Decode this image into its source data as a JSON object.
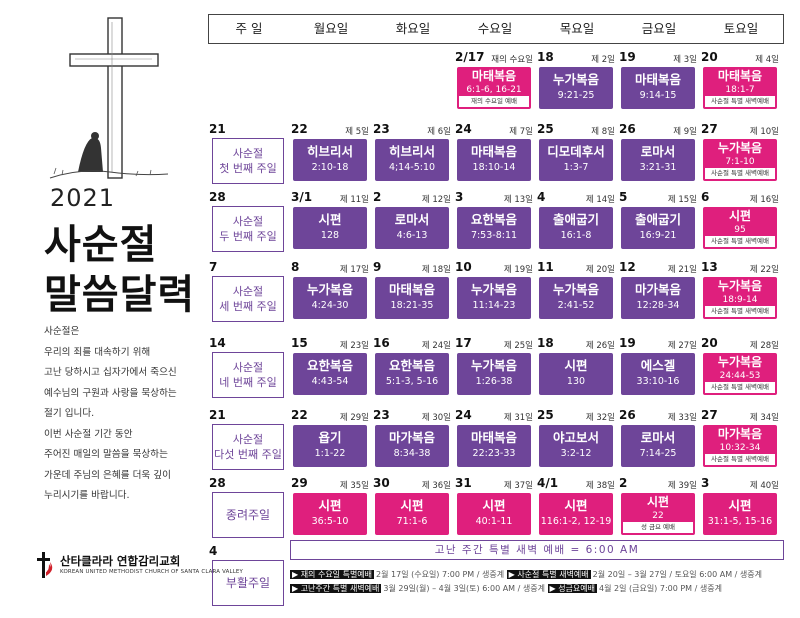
{
  "header": {
    "days": [
      "주 일",
      "월요일",
      "화요일",
      "수요일",
      "목요일",
      "금요일",
      "토요일"
    ]
  },
  "left": {
    "year": "2021",
    "title_line1": "사순절",
    "title_line2": "말씀달력",
    "description": [
      "사순절은",
      "우리의 죄를 대속하기 위해",
      "고난 당하시고 십자가에서 죽으신",
      "예수님의 구원과 사랑을 묵상하는",
      "절기 입니다.",
      "이번 사순절 기간 동안",
      "주어진 매일의 말씀을 묵상하는",
      "가운데 주님의 은혜를 더욱 깊이",
      "누리시기를 바랍니다."
    ],
    "church_name": "산타클라라 연합감리교회",
    "church_english": "KOREAN UNITED METHODIST CHURCH OF SANTA CLARA VALLEY"
  },
  "weeks": [
    {
      "sunday": null,
      "days": [
        null,
        null,
        {
          "date": "2/17",
          "sub": "재의 수요일",
          "title": "마태복음",
          "verse": "6:1-6, 16-21",
          "color": "magenta",
          "note": "재의 수요일 예배"
        },
        {
          "date": "18",
          "sub": "제 2일",
          "title": "누가복음",
          "verse": "9:21-25",
          "color": "purple"
        },
        {
          "date": "19",
          "sub": "제 3일",
          "title": "마태복음",
          "verse": "9:14-15",
          "color": "purple"
        },
        {
          "date": "20",
          "sub": "제 4일",
          "title": "마태복음",
          "verse": "18:1-7",
          "color": "magenta",
          "note": "사순절 특별 새벽예배"
        }
      ]
    },
    {
      "sunday": {
        "date": "21",
        "label1": "사순절",
        "label2": "첫 번째 주일"
      },
      "days": [
        {
          "date": "22",
          "sub": "제 5일",
          "title": "히브리서",
          "verse": "2:10-18",
          "color": "purple"
        },
        {
          "date": "23",
          "sub": "제 6일",
          "title": "히브리서",
          "verse": "4;14-5:10",
          "color": "purple"
        },
        {
          "date": "24",
          "sub": "제 7일",
          "title": "마태복음",
          "verse": "18:10-14",
          "color": "purple"
        },
        {
          "date": "25",
          "sub": "제 8일",
          "title": "디모데후서",
          "verse": "1:3-7",
          "color": "purple"
        },
        {
          "date": "26",
          "sub": "제 9일",
          "title": "로마서",
          "verse": "3:21-31",
          "color": "purple"
        },
        {
          "date": "27",
          "sub": "제 10일",
          "title": "누가복음",
          "verse": "7:1-10",
          "color": "magenta",
          "note": "사순절 특별 새벽예배"
        }
      ]
    },
    {
      "sunday": {
        "date": "28",
        "label1": "사순절",
        "label2": "두 번째 주일"
      },
      "days": [
        {
          "date": "3/1",
          "sub": "제 11일",
          "title": "시편",
          "verse": "128",
          "color": "purple"
        },
        {
          "date": "2",
          "sub": "제 12일",
          "title": "로마서",
          "verse": "4:6-13",
          "color": "purple"
        },
        {
          "date": "3",
          "sub": "제 13일",
          "title": "요한복음",
          "verse": "7:53-8:11",
          "color": "purple"
        },
        {
          "date": "4",
          "sub": "제 14일",
          "title": "출애굽기",
          "verse": "16:1-8",
          "color": "purple"
        },
        {
          "date": "5",
          "sub": "제 15일",
          "title": "출애굽기",
          "verse": "16:9-21",
          "color": "purple"
        },
        {
          "date": "6",
          "sub": "제 16일",
          "title": "시편",
          "verse": "95",
          "color": "magenta",
          "note": "사순절 특별 새벽예배"
        }
      ]
    },
    {
      "sunday": {
        "date": "7",
        "label1": "사순절",
        "label2": "세 번째 주일"
      },
      "days": [
        {
          "date": "8",
          "sub": "제 17일",
          "title": "누가복음",
          "verse": "4:24-30",
          "color": "purple"
        },
        {
          "date": "9",
          "sub": "제 18일",
          "title": "마태복음",
          "verse": "18:21-35",
          "color": "purple"
        },
        {
          "date": "10",
          "sub": "제 19일",
          "title": "누가복음",
          "verse": "11:14-23",
          "color": "purple"
        },
        {
          "date": "11",
          "sub": "제 20일",
          "title": "누가복음",
          "verse": "2:41-52",
          "color": "purple"
        },
        {
          "date": "12",
          "sub": "제 21일",
          "title": "마가복음",
          "verse": "12:28-34",
          "color": "purple"
        },
        {
          "date": "13",
          "sub": "제 22일",
          "title": "누가복음",
          "verse": "18:9-14",
          "color": "magenta",
          "note": "사순절 특별 새벽예배"
        }
      ]
    },
    {
      "sunday": {
        "date": "14",
        "label1": "사순절",
        "label2": "네 번째 주일"
      },
      "days": [
        {
          "date": "15",
          "sub": "제 23일",
          "title": "요한복음",
          "verse": "4:43-54",
          "color": "purple"
        },
        {
          "date": "16",
          "sub": "제 24일",
          "title": "요한복음",
          "verse": "5:1-3, 5-16",
          "color": "purple"
        },
        {
          "date": "17",
          "sub": "제 25일",
          "title": "누가복음",
          "verse": "1:26-38",
          "color": "purple"
        },
        {
          "date": "18",
          "sub": "제 26일",
          "title": "시편",
          "verse": "130",
          "color": "purple"
        },
        {
          "date": "19",
          "sub": "제 27일",
          "title": "에스겔",
          "verse": "33:10-16",
          "color": "purple"
        },
        {
          "date": "20",
          "sub": "제 28일",
          "title": "누가복음",
          "verse": "24:44-53",
          "color": "magenta",
          "note": "사순절 특별 새벽예배"
        }
      ]
    },
    {
      "sunday": {
        "date": "21",
        "label1": "사순절",
        "label2": "다섯 번째 주일"
      },
      "days": [
        {
          "date": "22",
          "sub": "제 29일",
          "title": "욥기",
          "verse": "1:1-22",
          "color": "purple"
        },
        {
          "date": "23",
          "sub": "제 30일",
          "title": "마가복음",
          "verse": "8:34-38",
          "color": "purple"
        },
        {
          "date": "24",
          "sub": "제 31일",
          "title": "마태복음",
          "verse": "22:23-33",
          "color": "purple"
        },
        {
          "date": "25",
          "sub": "제 32일",
          "title": "야고보서",
          "verse": "3:2-12",
          "color": "purple"
        },
        {
          "date": "26",
          "sub": "제 33일",
          "title": "로마서",
          "verse": "7:14-25",
          "color": "purple"
        },
        {
          "date": "27",
          "sub": "제 34일",
          "title": "마가복음",
          "verse": "10:32-34",
          "color": "magenta",
          "note": "사순절 특별 새벽예배"
        }
      ]
    },
    {
      "sunday": {
        "date": "28",
        "label1": "종려주일",
        "label2": ""
      },
      "days": [
        {
          "date": "29",
          "sub": "제 35일",
          "title": "시편",
          "verse": "36:5-10",
          "color": "magenta"
        },
        {
          "date": "30",
          "sub": "제 36일",
          "title": "시편",
          "verse": "71:1-6",
          "color": "magenta"
        },
        {
          "date": "31",
          "sub": "제 37일",
          "title": "시편",
          "verse": "40:1-11",
          "color": "magenta"
        },
        {
          "date": "4/1",
          "sub": "제 38일",
          "title": "시편",
          "verse": "116:1-2, 12-19",
          "color": "magenta"
        },
        {
          "date": "2",
          "sub": "제 39일",
          "title": "시편",
          "verse": "22",
          "color": "magenta",
          "note": "성 금요 예배"
        },
        {
          "date": "3",
          "sub": "제 40일",
          "title": "시편",
          "verse": "31:1-5, 15-16",
          "color": "magenta"
        }
      ]
    },
    {
      "sunday": {
        "date": "4",
        "label1": "부활주일",
        "label2": ""
      },
      "days": []
    }
  ],
  "banner": "고난 주간 특별 새벽 예배 = 6:00 AM",
  "legend": [
    {
      "tag": "▶ 재의 수요일 특별예배",
      "text": "2월 17일 (수요일) 7:00 PM / 생중계"
    },
    {
      "tag": "▶ 사순절 특별 새벽예배",
      "text": "2월 20일 – 3월 27일 / 토요일 6:00 AM / 생중계"
    },
    {
      "tag": "▶ 고난주간 특별 새벽예배",
      "text": "3월 29일(월) – 4월 3일(토) 6:00 AM / 생중계"
    },
    {
      "tag": "▶ 성금요예배",
      "text": "4월 2일 (금요일) 7:00 PM / 생중계"
    }
  ],
  "colors": {
    "purple": "#6e4599",
    "magenta": "#df1f7d"
  }
}
